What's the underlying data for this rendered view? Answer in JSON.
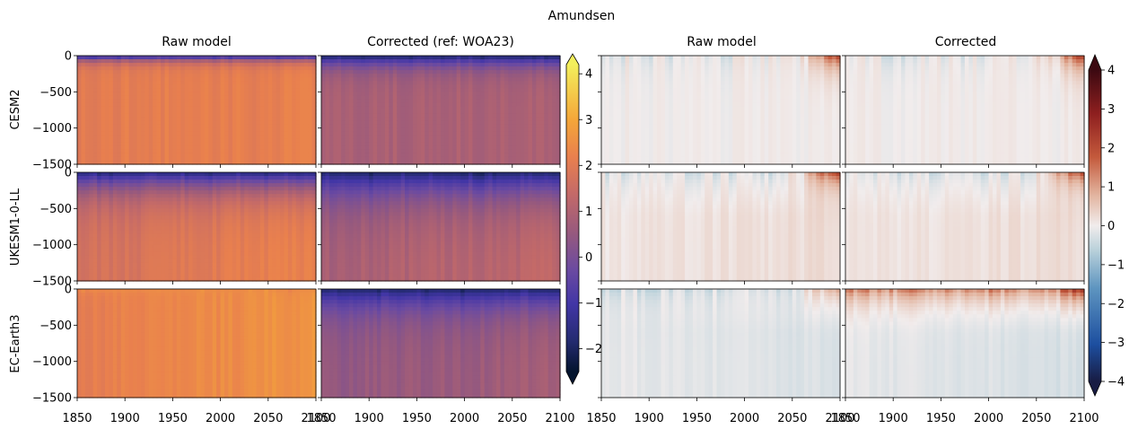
{
  "figure_title": "Amundsen",
  "chart_data": {
    "type": "heatmap",
    "title": "Amundsen",
    "column_titles": [
      "Raw model",
      "Corrected (ref: WOA23)",
      "Raw model",
      "Corrected"
    ],
    "row_labels": [
      "CESM2",
      "UKESM1-0-LL",
      "EC-Earth3"
    ],
    "x_ticks": [
      "1850",
      "1900",
      "1950",
      "2000",
      "2050",
      "2100"
    ],
    "y_ticks": [
      "0",
      "−500",
      "−1000",
      "−1500"
    ],
    "xlim": [
      1850,
      2100
    ],
    "ylim": [
      -1500,
      0
    ],
    "colorbars": [
      {
        "name": "temperature",
        "colormap": "thermal",
        "ticks": [
          "4",
          "3",
          "2",
          "1",
          "0",
          "−1",
          "−2"
        ],
        "range": [
          -2.5,
          4.2
        ],
        "extend": "both"
      },
      {
        "name": "anomaly",
        "colormap": "balance",
        "ticks": [
          "4",
          "3",
          "2",
          "1",
          "0",
          "−1",
          "−2",
          "−3",
          "−4"
        ],
        "range": [
          -4,
          4
        ],
        "extend": "both"
      }
    ],
    "panels": [
      {
        "row": "CESM2",
        "column": 0,
        "surface_value": -1.8,
        "surface_depth": -100,
        "deep_value": 2.4,
        "warming_trend": 0.1
      },
      {
        "row": "CESM2",
        "column": 1,
        "surface_value": -2.0,
        "surface_depth": -200,
        "deep_value": 1.2,
        "warming_trend": 0.05
      },
      {
        "row": "CESM2",
        "column": 2,
        "surface_value": -0.2,
        "late_surface_anomaly": 2.4,
        "deep_value": 0.0
      },
      {
        "row": "CESM2",
        "column": 3,
        "surface_value": -0.3,
        "late_surface_anomaly": 2.4,
        "deep_value": 0.0
      },
      {
        "row": "UKESM1-0-LL",
        "column": 0,
        "surface_value": -1.6,
        "surface_depth": -400,
        "deep_value": 2.0,
        "warming_trend": 0.6
      },
      {
        "row": "UKESM1-0-LL",
        "column": 1,
        "surface_value": -1.8,
        "surface_depth": -500,
        "deep_value": 1.2,
        "warming_trend": 0.4
      },
      {
        "row": "UKESM1-0-LL",
        "column": 2,
        "surface_value": -0.4,
        "late_surface_anomaly": 3.0,
        "deep_value": 0.3
      },
      {
        "row": "UKESM1-0-LL",
        "column": 3,
        "surface_value": -0.4,
        "late_surface_anomaly": 2.8,
        "deep_value": 0.3
      },
      {
        "row": "EC-Earth3",
        "column": 0,
        "surface_value": 2.8,
        "surface_depth": -100,
        "deep_value": 2.4,
        "warming_trend": 0.6
      },
      {
        "row": "EC-Earth3",
        "column": 1,
        "surface_value": -1.8,
        "surface_depth": -400,
        "deep_value": 0.8,
        "warming_trend": 0.3
      },
      {
        "row": "EC-Earth3",
        "column": 2,
        "surface_value": -0.5,
        "late_surface_anomaly": 1.5,
        "deep_value": -0.4
      },
      {
        "row": "EC-Earth3",
        "column": 3,
        "surface_value": 1.5,
        "late_surface_anomaly": 3.0,
        "deep_value": -0.5
      }
    ],
    "grid": false,
    "colors": {
      "thermal_stops": [
        "#04142e",
        "#242b70",
        "#4236a6",
        "#6a4aa1",
        "#96597e",
        "#c46a68",
        "#e9804e",
        "#f4a639",
        "#f3ef5c"
      ],
      "balance_stops": [
        "#181c43",
        "#1d4fa0",
        "#5e95c0",
        "#b8d0da",
        "#f1ecec",
        "#e2b39e",
        "#c45a3c",
        "#8e1f1f",
        "#3c0911"
      ]
    }
  }
}
